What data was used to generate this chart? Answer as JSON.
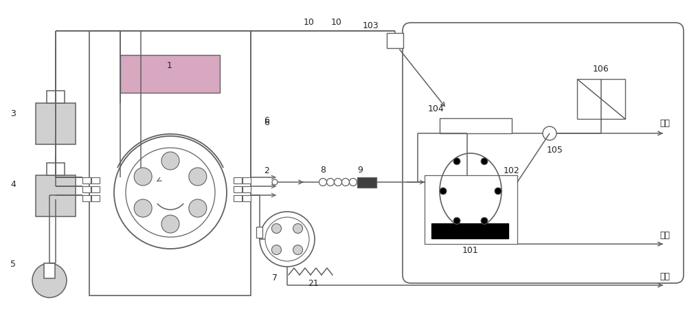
{
  "bg": "#ffffff",
  "lc": "#606060",
  "gray": "#b0b0b0",
  "light": "#d0d0d0",
  "pink": "#d8a8c0",
  "dark": "#404040",
  "waste": "废液",
  "lw": 1.1
}
